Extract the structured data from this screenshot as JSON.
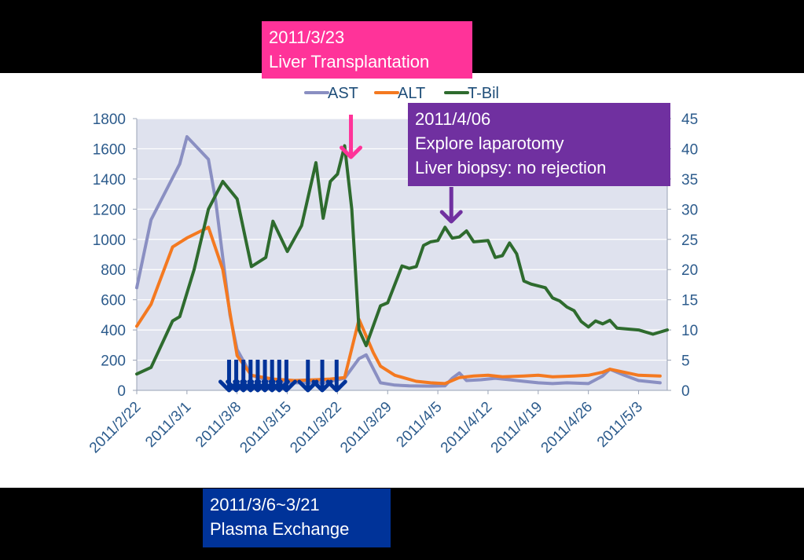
{
  "colors": {
    "frame": "#000000",
    "panel": "#ffffff",
    "plot_bg": "#dfe2ee",
    "grid": "#ffffff",
    "axis_text": "#2c5b8c",
    "legend_text": "#1f4e79",
    "ast": "#8a8fc2",
    "alt": "#f47920",
    "tbil": "#2e6b2e",
    "transplant_box": "#ff3399",
    "transplant_arrow": "#ff3399",
    "biopsy_box": "#7030a0",
    "biopsy_arrow": "#7030a0",
    "plasma_box": "#003399",
    "plasma_arrows": "#003399"
  },
  "callouts": {
    "transplant": {
      "line1": "2011/3/23",
      "line2": "Liver Transplantation",
      "arrow_date": "2011/3/23"
    },
    "biopsy": {
      "line1": "2011/4/06",
      "line2": "Explore laparotomy",
      "line3": "Liver biopsy: no rejection",
      "arrow_date": "2011/4/06"
    },
    "plasma": {
      "line1": "2011/3/6~3/21",
      "line2": "Plasma Exchange",
      "arrow_dates": [
        "2011/3/6",
        "2011/3/7",
        "2011/3/8",
        "2011/3/9",
        "2011/3/10",
        "2011/3/11",
        "2011/3/12",
        "2011/3/13",
        "2011/3/14",
        "2011/3/17",
        "2011/3/19",
        "2011/3/21"
      ]
    }
  },
  "chart_data": {
    "type": "line",
    "title": "",
    "xlabel": "",
    "ylabel": "",
    "y2label": "",
    "x_type": "date",
    "x_range": [
      "2011/2/22",
      "2011/5/7"
    ],
    "x_ticks": [
      "2011/2/22",
      "2011/3/1",
      "2011/3/8",
      "2011/3/15",
      "2011/3/22",
      "2011/3/29",
      "2011/4/5",
      "2011/4/12",
      "2011/4/19",
      "2011/4/26",
      "2011/5/3"
    ],
    "ylim": [
      0,
      1800
    ],
    "y_ticks": [
      0,
      200,
      400,
      600,
      800,
      1000,
      1200,
      1400,
      1600,
      1800
    ],
    "y2lim": [
      0,
      45
    ],
    "y2_ticks": [
      0,
      5,
      10,
      15,
      20,
      25,
      30,
      35,
      40,
      45
    ],
    "grid": true,
    "legend": {
      "placement": "top-center",
      "entries": [
        "AST",
        "ALT",
        "T-Bil"
      ]
    },
    "series": [
      {
        "name": "AST",
        "axis": "left",
        "color": "#8a8fc2",
        "points": [
          [
            "2011/2/22",
            680
          ],
          [
            "2011/2/24",
            1130
          ],
          [
            "2011/2/28",
            1500
          ],
          [
            "2011/3/1",
            1680
          ],
          [
            "2011/3/4",
            1530
          ],
          [
            "2011/3/5",
            1260
          ],
          [
            "2011/3/7",
            500
          ],
          [
            "2011/3/8",
            270
          ],
          [
            "2011/3/10",
            100
          ],
          [
            "2011/3/12",
            70
          ],
          [
            "2011/3/15",
            50
          ],
          [
            "2011/3/18",
            50
          ],
          [
            "2011/3/20",
            50
          ],
          [
            "2011/3/22",
            70
          ],
          [
            "2011/3/23",
            80
          ],
          [
            "2011/3/25",
            210
          ],
          [
            "2011/3/26",
            235
          ],
          [
            "2011/3/28",
            50
          ],
          [
            "2011/3/30",
            35
          ],
          [
            "2011/4/1",
            30
          ],
          [
            "2011/4/4",
            28
          ],
          [
            "2011/4/6",
            30
          ],
          [
            "2011/4/7",
            80
          ],
          [
            "2011/4/8",
            115
          ],
          [
            "2011/4/9",
            65
          ],
          [
            "2011/4/11",
            70
          ],
          [
            "2011/4/13",
            80
          ],
          [
            "2011/4/15",
            70
          ],
          [
            "2011/4/17",
            60
          ],
          [
            "2011/4/19",
            50
          ],
          [
            "2011/4/21",
            45
          ],
          [
            "2011/4/23",
            50
          ],
          [
            "2011/4/26",
            45
          ],
          [
            "2011/4/28",
            95
          ],
          [
            "2011/4/29",
            140
          ],
          [
            "2011/5/1",
            100
          ],
          [
            "2011/5/3",
            65
          ],
          [
            "2011/5/6",
            50
          ]
        ]
      },
      {
        "name": "ALT",
        "axis": "left",
        "color": "#f47920",
        "points": [
          [
            "2011/2/22",
            425
          ],
          [
            "2011/2/24",
            570
          ],
          [
            "2011/2/27",
            950
          ],
          [
            "2011/3/1",
            1010
          ],
          [
            "2011/3/4",
            1080
          ],
          [
            "2011/3/6",
            800
          ],
          [
            "2011/3/8",
            230
          ],
          [
            "2011/3/10",
            100
          ],
          [
            "2011/3/13",
            75
          ],
          [
            "2011/3/16",
            65
          ],
          [
            "2011/3/19",
            70
          ],
          [
            "2011/3/21",
            75
          ],
          [
            "2011/3/23",
            85
          ],
          [
            "2011/3/25",
            470
          ],
          [
            "2011/3/27",
            250
          ],
          [
            "2011/3/28",
            160
          ],
          [
            "2011/3/30",
            100
          ],
          [
            "2011/4/2",
            60
          ],
          [
            "2011/4/4",
            50
          ],
          [
            "2011/4/6",
            45
          ],
          [
            "2011/4/8",
            85
          ],
          [
            "2011/4/10",
            95
          ],
          [
            "2011/4/12",
            100
          ],
          [
            "2011/4/14",
            90
          ],
          [
            "2011/4/17",
            95
          ],
          [
            "2011/4/19",
            100
          ],
          [
            "2011/4/21",
            90
          ],
          [
            "2011/4/24",
            95
          ],
          [
            "2011/4/26",
            100
          ],
          [
            "2011/4/28",
            120
          ],
          [
            "2011/4/29",
            140
          ],
          [
            "2011/5/1",
            120
          ],
          [
            "2011/5/3",
            100
          ],
          [
            "2011/5/6",
            95
          ]
        ]
      },
      {
        "name": "T-Bil",
        "axis": "right",
        "color": "#2e6b2e",
        "points": [
          [
            "2011/2/22",
            2.7
          ],
          [
            "2011/2/24",
            3.8
          ],
          [
            "2011/2/27",
            11.5
          ],
          [
            "2011/2/28",
            12.2
          ],
          [
            "2011/3/2",
            20
          ],
          [
            "2011/3/4",
            30
          ],
          [
            "2011/3/6",
            34.6
          ],
          [
            "2011/3/8",
            31.7
          ],
          [
            "2011/3/10",
            20.5
          ],
          [
            "2011/3/12",
            22
          ],
          [
            "2011/3/13",
            28
          ],
          [
            "2011/3/15",
            23
          ],
          [
            "2011/3/17",
            27.3
          ],
          [
            "2011/3/19",
            37.7
          ],
          [
            "2011/3/20",
            28.5
          ],
          [
            "2011/3/21",
            34.6
          ],
          [
            "2011/3/22",
            35.8
          ],
          [
            "2011/3/23",
            40.5
          ],
          [
            "2011/3/24",
            30
          ],
          [
            "2011/3/25",
            10
          ],
          [
            "2011/3/26",
            7.4
          ],
          [
            "2011/3/28",
            14
          ],
          [
            "2011/3/29",
            14.5
          ],
          [
            "2011/3/31",
            20.6
          ],
          [
            "2011/4/1",
            20.2
          ],
          [
            "2011/4/2",
            20.5
          ],
          [
            "2011/4/3",
            24
          ],
          [
            "2011/4/4",
            24.6
          ],
          [
            "2011/4/5",
            24.8
          ],
          [
            "2011/4/6",
            27
          ],
          [
            "2011/4/7",
            25.2
          ],
          [
            "2011/4/8",
            25.4
          ],
          [
            "2011/4/9",
            26.4
          ],
          [
            "2011/4/10",
            24.6
          ],
          [
            "2011/4/12",
            24.8
          ],
          [
            "2011/4/13",
            22
          ],
          [
            "2011/4/14",
            22.3
          ],
          [
            "2011/4/15",
            24.4
          ],
          [
            "2011/4/16",
            22.6
          ],
          [
            "2011/4/17",
            18.1
          ],
          [
            "2011/4/18",
            17.6
          ],
          [
            "2011/4/20",
            17
          ],
          [
            "2011/4/21",
            15.3
          ],
          [
            "2011/4/22",
            14.8
          ],
          [
            "2011/4/23",
            13.8
          ],
          [
            "2011/4/24",
            13.2
          ],
          [
            "2011/4/25",
            11.4
          ],
          [
            "2011/4/26",
            10.5
          ],
          [
            "2011/4/27",
            11.5
          ],
          [
            "2011/4/28",
            11
          ],
          [
            "2011/4/29",
            11.6
          ],
          [
            "2011/4/30",
            10.3
          ],
          [
            "2011/5/3",
            10
          ],
          [
            "2011/5/5",
            9.3
          ],
          [
            "2011/5/7",
            10
          ]
        ]
      }
    ]
  }
}
